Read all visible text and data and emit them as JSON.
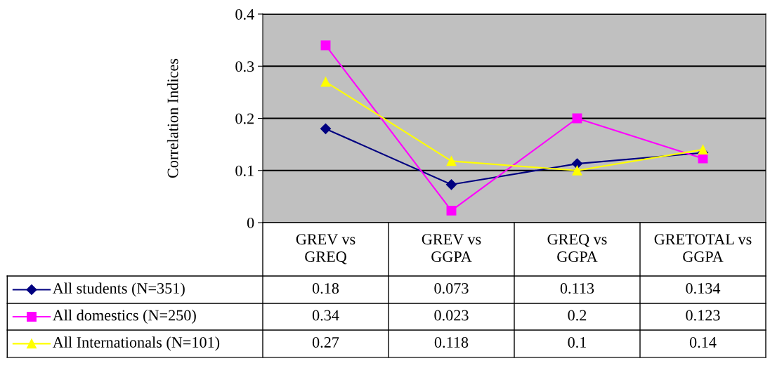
{
  "chart_data": {
    "type": "line",
    "ylabel": "Correlation Indices",
    "categories": [
      "GREV vs\nGREQ",
      "GREV vs\nGGPA",
      "GREQ vs\nGGPA",
      "GRETOTAL vs\nGGPA"
    ],
    "series": [
      {
        "name": "All students (N=351)",
        "color": "#000080",
        "marker": "diamond",
        "values": [
          0.18,
          0.073,
          0.113,
          0.134
        ]
      },
      {
        "name": "All domestics (N=250)",
        "color": "#ff00ff",
        "marker": "square",
        "values": [
          0.34,
          0.023,
          0.2,
          0.123
        ]
      },
      {
        "name": "All Internationals (N=101)",
        "color": "#ffff00",
        "marker": "triangle",
        "values": [
          0.27,
          0.118,
          0.1,
          0.14
        ]
      }
    ],
    "ylim": [
      0,
      0.4
    ],
    "yticks": [
      0,
      0.1,
      0.2,
      0.3,
      0.4
    ],
    "grid": "y",
    "legend": "bottom left",
    "data_labels": true
  }
}
